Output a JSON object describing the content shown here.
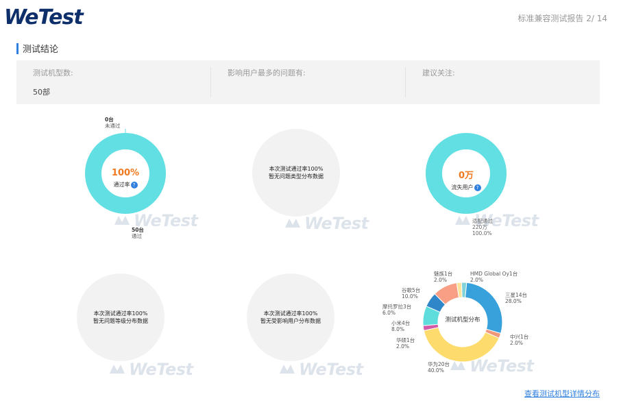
{
  "header": {
    "logo_text": "WeTest",
    "page_info": "标准兼容测试报告 2/ 14"
  },
  "section": {
    "title": "测试结论"
  },
  "summary": {
    "col1_label": "测试机型数:",
    "col1_value": "50部",
    "col2_label": "影响用户最多的问题有:",
    "col2_value": "",
    "col3_label": "建议关注:",
    "col3_value": ""
  },
  "pass_chart": {
    "center_value": "100%",
    "center_label": "通过率",
    "fail_count": "0台",
    "fail_label": "未通过",
    "pass_count": "50台",
    "pass_label": "通过",
    "pass_fraction": 1.0,
    "color": "#62dfe3"
  },
  "issue_type_chart": {
    "line1": "本次测试通过率100%",
    "line2": "暂无问题类型分布数据"
  },
  "lost_users_chart": {
    "center_value": "0万",
    "center_label": "流失用户",
    "slice_line1": "适配通过",
    "slice_line2": "220万",
    "slice_line3": "100.0%",
    "fraction": 1.0,
    "color": "#62dfe3"
  },
  "issue_level_chart": {
    "line1": "本次测试通过率100%",
    "line2": "暂无问题等级分布数据"
  },
  "affected_users_chart": {
    "line1": "本次测试通过率100%",
    "line2": "暂无受影响用户分布数据"
  },
  "device_chart": {
    "center_label": "测试机型分布",
    "slices": [
      {
        "name": "三星14台",
        "percent": "28.0%",
        "value": 28,
        "color": "#38a0db"
      },
      {
        "name": "中兴1台",
        "percent": "2.0%",
        "value": 2,
        "color": "#f0977a"
      },
      {
        "name": "华为20台",
        "percent": "40.0%",
        "value": 40,
        "color": "#fddc6d"
      },
      {
        "name": "华硕1台",
        "percent": "2.0%",
        "value": 2,
        "color": "#d45aa8"
      },
      {
        "name": "小米4台",
        "percent": "8.0%",
        "value": 8,
        "color": "#5fdcdc"
      },
      {
        "name": "摩托罗拉3台",
        "percent": "6.0%",
        "value": 6,
        "color": "#2f86c8"
      },
      {
        "name": "谷歌5台",
        "percent": "10.0%",
        "value": 10,
        "color": "#f99f86"
      },
      {
        "name": "魅族1台",
        "percent": "2.0%",
        "value": 2,
        "color": "#fde49a"
      },
      {
        "name": "HMD Global Oy1台",
        "percent": "2.0%",
        "value": 2,
        "color": "#7fd3d8"
      }
    ]
  },
  "watermark_text": "WeTest",
  "footer": {
    "detail_link": "查看测试机型详情分布"
  }
}
